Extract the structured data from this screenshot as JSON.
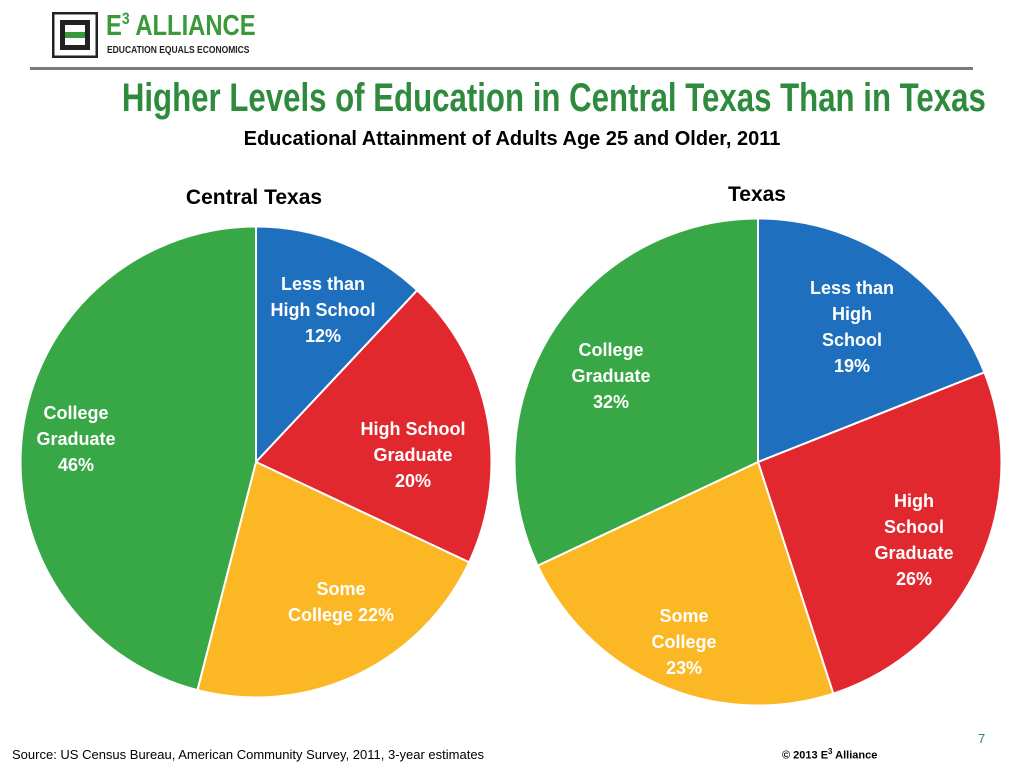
{
  "header": {
    "logo_name": "E",
    "logo_sup": "3",
    "logo_name_rest": " ALLIANCE",
    "logo_tag": "EDUCATION EQUALS ECONOMICS",
    "title": "Higher Levels of Education in Central Texas Than in Texas",
    "subtitle": "Educational Attainment of Adults Age 25 and Older, 2011"
  },
  "colors": {
    "less_than_high_school": "#1f6fbf",
    "high_school_graduate": "#e0282e",
    "some_college": "#fbb724",
    "college_graduate": "#38a846",
    "title_green": "#2e8b3d"
  },
  "chart_data": [
    {
      "type": "pie",
      "title": "Central Texas",
      "slices": [
        {
          "category": "Less than High School",
          "value": 12,
          "label_lines": [
            "Less than",
            "High School",
            "12%"
          ]
        },
        {
          "category": "High School Graduate",
          "value": 20,
          "label_lines": [
            "High School",
            "Graduate",
            "20%"
          ]
        },
        {
          "category": "Some College",
          "value": 22,
          "label_lines": [
            "Some",
            "College 22%"
          ]
        },
        {
          "category": "College Graduate",
          "value": 46,
          "label_lines": [
            "College",
            "Graduate",
            "46%"
          ]
        }
      ]
    },
    {
      "type": "pie",
      "title": "Texas",
      "slices": [
        {
          "category": "Less than High School",
          "value": 19,
          "label_lines": [
            "Less than",
            "High",
            "School",
            "19%"
          ]
        },
        {
          "category": "High School Graduate",
          "value": 26,
          "label_lines": [
            "High",
            "School",
            "Graduate",
            "26%"
          ]
        },
        {
          "category": "Some College",
          "value": 23,
          "label_lines": [
            "Some",
            "College",
            "23%"
          ]
        },
        {
          "category": "College Graduate",
          "value": 32,
          "label_lines": [
            "College",
            "Graduate",
            "32%"
          ]
        }
      ]
    }
  ],
  "footer": {
    "source": "Source: US Census Bureau, American Community Survey, 2011, 3-year estimates",
    "copyright_prefix": "© 2013 E",
    "copyright_sup": "3",
    "copyright_suffix": " Alliance",
    "page_number": "7"
  }
}
